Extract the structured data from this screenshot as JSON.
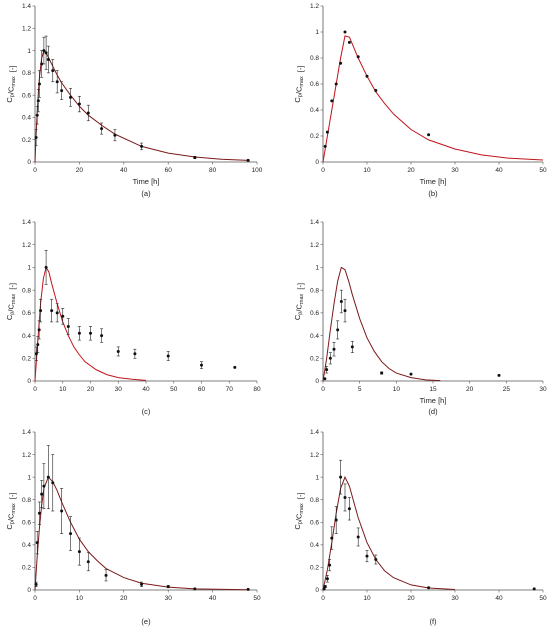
{
  "chart_data": [
    {
      "type": "scatter",
      "panel_label": "(a)",
      "xlabel": "Time [h]",
      "ylabel_main": "C",
      "ylabel_sub1": "p",
      "ylabel_mid": "/C",
      "ylabel_sub2": "max",
      "ylabel_unit": "[-]",
      "xlim": [
        0,
        100
      ],
      "ylim": [
        0,
        1.4
      ],
      "xticks": [
        "0",
        "20",
        "40",
        "60",
        "80",
        "100"
      ],
      "yticks": [
        "0",
        "0.2",
        "0.4",
        "0.6",
        "0.8",
        "1",
        "1.2",
        "1.4"
      ],
      "points": [
        [
          0.5,
          0.22,
          0.07
        ],
        [
          1,
          0.42,
          0.08
        ],
        [
          1.5,
          0.55,
          0.1
        ],
        [
          2,
          0.7,
          0.12
        ],
        [
          3,
          0.88,
          0.12
        ],
        [
          4,
          1.0,
          0.12
        ],
        [
          5,
          0.98,
          0.15
        ],
        [
          6,
          0.92,
          0.12
        ],
        [
          8,
          0.82,
          0.1
        ],
        [
          10,
          0.72,
          0.1
        ],
        [
          12,
          0.64,
          0.08
        ],
        [
          16,
          0.58,
          0.08
        ],
        [
          20,
          0.52,
          0.07
        ],
        [
          24,
          0.44,
          0.07
        ],
        [
          30,
          0.3,
          0.05
        ],
        [
          36,
          0.24,
          0.05
        ],
        [
          48,
          0.14,
          0.03
        ],
        [
          72,
          0.04,
          0.01
        ],
        [
          96,
          0.015,
          0.005
        ]
      ],
      "model": [
        [
          0,
          0
        ],
        [
          0.5,
          0.25
        ],
        [
          1,
          0.45
        ],
        [
          1.5,
          0.62
        ],
        [
          2,
          0.76
        ],
        [
          3,
          0.93
        ],
        [
          4,
          1.0
        ],
        [
          5,
          0.98
        ],
        [
          6,
          0.94
        ],
        [
          8,
          0.86
        ],
        [
          10,
          0.78
        ],
        [
          12,
          0.71
        ],
        [
          16,
          0.6
        ],
        [
          20,
          0.5
        ],
        [
          24,
          0.42
        ],
        [
          30,
          0.33
        ],
        [
          36,
          0.25
        ],
        [
          48,
          0.14
        ],
        [
          60,
          0.08
        ],
        [
          72,
          0.045
        ],
        [
          84,
          0.025
        ],
        [
          96,
          0.015
        ]
      ],
      "line_color": "#7a1a1a"
    },
    {
      "type": "scatter",
      "panel_label": "(b)",
      "xlabel": "Time [h]",
      "ylabel_main": "C",
      "ylabel_sub1": "p",
      "ylabel_mid": "/C",
      "ylabel_sub2": "max",
      "ylabel_unit": "[-]",
      "xlim": [
        0,
        50
      ],
      "ylim": [
        0,
        1.2
      ],
      "xticks": [
        "0",
        "10",
        "20",
        "30",
        "40",
        "50"
      ],
      "yticks": [
        "0",
        "0.2",
        "0.4",
        "0.6",
        "0.8",
        "1",
        "1.2"
      ],
      "points": [
        [
          0.5,
          0.12,
          0
        ],
        [
          1,
          0.23,
          0
        ],
        [
          2,
          0.47,
          0
        ],
        [
          3,
          0.6,
          0
        ],
        [
          4,
          0.76,
          0
        ],
        [
          5,
          1.0,
          0
        ],
        [
          6,
          0.92,
          0
        ],
        [
          8,
          0.81,
          0
        ],
        [
          10,
          0.66,
          0
        ],
        [
          12,
          0.55,
          0
        ],
        [
          24,
          0.21,
          0
        ]
      ],
      "model": [
        [
          0,
          0
        ],
        [
          1,
          0.2
        ],
        [
          2,
          0.4
        ],
        [
          3,
          0.6
        ],
        [
          4,
          0.8
        ],
        [
          5,
          0.97
        ],
        [
          6,
          0.96
        ],
        [
          7,
          0.88
        ],
        [
          8,
          0.8
        ],
        [
          10,
          0.66
        ],
        [
          12,
          0.54
        ],
        [
          14,
          0.45
        ],
        [
          16,
          0.37
        ],
        [
          20,
          0.25
        ],
        [
          24,
          0.17
        ],
        [
          30,
          0.1
        ],
        [
          36,
          0.055
        ],
        [
          42,
          0.03
        ],
        [
          50,
          0.015
        ]
      ],
      "line_color": "#c0141c"
    },
    {
      "type": "scatter",
      "panel_label": "(c)",
      "xlabel": "",
      "ylabel_main": "C",
      "ylabel_sub1": "p",
      "ylabel_mid": "/C",
      "ylabel_sub2": "max",
      "ylabel_unit": "[-]",
      "xlim": [
        0,
        80
      ],
      "ylim": [
        0,
        1.4
      ],
      "xticks": [
        "0",
        "10",
        "20",
        "30",
        "40",
        "50",
        "60",
        "70",
        "80"
      ],
      "yticks": [
        "0",
        "0.2",
        "0.4",
        "0.6",
        "0.8",
        "1",
        "1.2",
        "1.4"
      ],
      "points": [
        [
          0.5,
          0.24,
          0.06
        ],
        [
          1,
          0.32,
          0.07
        ],
        [
          1.5,
          0.45,
          0.08
        ],
        [
          2,
          0.62,
          0.1
        ],
        [
          4,
          1.0,
          0.15
        ],
        [
          6,
          0.62,
          0.1
        ],
        [
          8,
          0.6,
          0.08
        ],
        [
          10,
          0.57,
          0.07
        ],
        [
          12,
          0.48,
          0.07
        ],
        [
          16,
          0.42,
          0.06
        ],
        [
          20,
          0.42,
          0.06
        ],
        [
          24,
          0.4,
          0.06
        ],
        [
          30,
          0.26,
          0.04
        ],
        [
          36,
          0.24,
          0.04
        ],
        [
          48,
          0.22,
          0.04
        ],
        [
          60,
          0.14,
          0.03
        ],
        [
          72,
          0.12,
          0
        ]
      ],
      "model": [
        [
          0,
          0
        ],
        [
          1,
          0.35
        ],
        [
          2,
          0.68
        ],
        [
          3,
          0.9
        ],
        [
          4,
          1.0
        ],
        [
          5,
          0.96
        ],
        [
          6,
          0.86
        ],
        [
          8,
          0.68
        ],
        [
          10,
          0.52
        ],
        [
          12,
          0.4
        ],
        [
          14,
          0.3
        ],
        [
          16,
          0.23
        ],
        [
          18,
          0.17
        ],
        [
          22,
          0.1
        ],
        [
          26,
          0.055
        ],
        [
          30,
          0.03
        ],
        [
          35,
          0.015
        ],
        [
          40,
          0.005
        ]
      ],
      "line_color": "#c0141c"
    },
    {
      "type": "scatter",
      "panel_label": "(d)",
      "xlabel": "Time [h]",
      "ylabel_main": "C",
      "ylabel_sub1": "p",
      "ylabel_mid": "/C",
      "ylabel_sub2": "max",
      "ylabel_unit": "[-]",
      "xlim": [
        0,
        30
      ],
      "ylim": [
        0,
        1.4
      ],
      "xticks": [
        "0",
        "5",
        "10",
        "15",
        "20",
        "25",
        "30"
      ],
      "yticks": [
        "0",
        "0.2",
        "0.4",
        "0.6",
        "0.8",
        "1",
        "1.2",
        "1.4"
      ],
      "points": [
        [
          0.25,
          0.02,
          0
        ],
        [
          0.5,
          0.1,
          0.03
        ],
        [
          1,
          0.2,
          0.05
        ],
        [
          1.5,
          0.28,
          0.06
        ],
        [
          2,
          0.45,
          0.08
        ],
        [
          2.5,
          0.7,
          0.1
        ],
        [
          3,
          0.62,
          0.1
        ],
        [
          4,
          0.3,
          0.05
        ],
        [
          8,
          0.07,
          0.01
        ],
        [
          12,
          0.06,
          0
        ],
        [
          24,
          0.05,
          0
        ]
      ],
      "model": [
        [
          0,
          0
        ],
        [
          0.5,
          0.2
        ],
        [
          1,
          0.45
        ],
        [
          1.5,
          0.68
        ],
        [
          2,
          0.88
        ],
        [
          2.5,
          1.0
        ],
        [
          3,
          0.98
        ],
        [
          3.5,
          0.88
        ],
        [
          4,
          0.76
        ],
        [
          5,
          0.55
        ],
        [
          6,
          0.38
        ],
        [
          7,
          0.26
        ],
        [
          8,
          0.17
        ],
        [
          9,
          0.11
        ],
        [
          10,
          0.07
        ],
        [
          12,
          0.03
        ],
        [
          14,
          0.01
        ],
        [
          16,
          0.003
        ]
      ],
      "line_color": "#7a1a1a"
    },
    {
      "type": "scatter",
      "panel_label": "(e)",
      "xlabel": "",
      "ylabel_main": "C",
      "ylabel_sub1": "p",
      "ylabel_mid": "/C",
      "ylabel_sub2": "max",
      "ylabel_unit": "[-]",
      "xlim": [
        0,
        50
      ],
      "ylim": [
        0,
        1.4
      ],
      "xticks": [
        "0",
        "10",
        "20",
        "30",
        "40",
        "50"
      ],
      "yticks": [
        "0",
        "0.2",
        "0.4",
        "0.6",
        "0.8",
        "1",
        "1.2",
        "1.4"
      ],
      "points": [
        [
          0.25,
          0.05,
          0.02
        ],
        [
          0.5,
          0.42,
          0.1
        ],
        [
          1,
          0.68,
          0.1
        ],
        [
          1.5,
          0.85,
          0.12
        ],
        [
          2,
          0.92,
          0.2
        ],
        [
          3,
          1.0,
          0.28
        ],
        [
          4,
          0.95,
          0.25
        ],
        [
          6,
          0.7,
          0.2
        ],
        [
          8,
          0.5,
          0.15
        ],
        [
          10,
          0.34,
          0.12
        ],
        [
          12,
          0.25,
          0.08
        ],
        [
          16,
          0.13,
          0.05
        ],
        [
          24,
          0.05,
          0.02
        ],
        [
          30,
          0.03,
          0.01
        ],
        [
          36,
          0.01,
          0
        ],
        [
          48,
          0.005,
          0
        ]
      ],
      "model": [
        [
          0,
          0
        ],
        [
          0.5,
          0.3
        ],
        [
          1,
          0.55
        ],
        [
          1.5,
          0.75
        ],
        [
          2,
          0.9
        ],
        [
          3,
          1.0
        ],
        [
          4,
          0.96
        ],
        [
          5,
          0.88
        ],
        [
          6,
          0.78
        ],
        [
          8,
          0.6
        ],
        [
          10,
          0.45
        ],
        [
          12,
          0.34
        ],
        [
          14,
          0.26
        ],
        [
          16,
          0.19
        ],
        [
          20,
          0.11
        ],
        [
          24,
          0.06
        ],
        [
          30,
          0.025
        ],
        [
          36,
          0.01
        ],
        [
          48,
          0.002
        ]
      ],
      "line_color": "#7a1a1a"
    },
    {
      "type": "scatter",
      "panel_label": "(f)",
      "xlabel": "",
      "ylabel_main": "C",
      "ylabel_sub1": "p",
      "ylabel_mid": "/C",
      "ylabel_sub2": "max",
      "ylabel_unit": "[-]",
      "xlim": [
        0,
        50
      ],
      "ylim": [
        0,
        1.4
      ],
      "xticks": [
        "0",
        "10",
        "20",
        "30",
        "40",
        "50"
      ],
      "yticks": [
        "0",
        "0.2",
        "0.4",
        "0.6",
        "0.8",
        "1",
        "1.2",
        "1.4"
      ],
      "points": [
        [
          0.25,
          0.01,
          0
        ],
        [
          0.5,
          0.03,
          0.01
        ],
        [
          1,
          0.1,
          0.03
        ],
        [
          1.5,
          0.22,
          0.05
        ],
        [
          2,
          0.46,
          0.1
        ],
        [
          3,
          0.62,
          0.12
        ],
        [
          4,
          1.0,
          0.15
        ],
        [
          5,
          0.82,
          0.12
        ],
        [
          6,
          0.72,
          0.1
        ],
        [
          8,
          0.47,
          0.08
        ],
        [
          10,
          0.3,
          0.05
        ],
        [
          12,
          0.27,
          0.04
        ],
        [
          24,
          0.02,
          0
        ],
        [
          48,
          0.01,
          0
        ]
      ],
      "model": [
        [
          0,
          0
        ],
        [
          1,
          0.18
        ],
        [
          2,
          0.42
        ],
        [
          3,
          0.68
        ],
        [
          4,
          0.9
        ],
        [
          5,
          1.0
        ],
        [
          6,
          0.92
        ],
        [
          7,
          0.78
        ],
        [
          8,
          0.64
        ],
        [
          10,
          0.42
        ],
        [
          12,
          0.27
        ],
        [
          14,
          0.17
        ],
        [
          16,
          0.11
        ],
        [
          20,
          0.045
        ],
        [
          24,
          0.018
        ],
        [
          30,
          0.005
        ]
      ],
      "line_color": "#7a1a1a"
    }
  ]
}
